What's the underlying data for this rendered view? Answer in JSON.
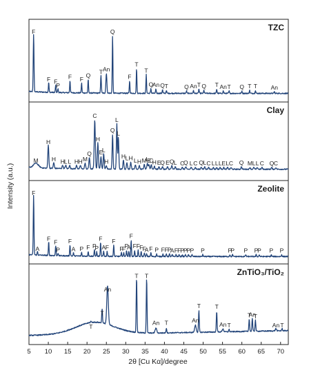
{
  "chart_data": {
    "type": "line",
    "xlabel": "2θ [Cu Kα]/degree",
    "ylabel": "Intensity (a.u.)",
    "xlim": [
      5,
      72
    ],
    "xticks": [
      5,
      10,
      15,
      20,
      25,
      30,
      35,
      40,
      45,
      50,
      55,
      60,
      65,
      70
    ],
    "line_color": "#23457a",
    "panels": [
      {
        "name": "TZC",
        "baseline": 0.05,
        "peaks": [
          {
            "x": 6.2,
            "h": 0.93,
            "w": 0.14,
            "label": "F"
          },
          {
            "x": 10.1,
            "h": 0.16,
            "w": 0.12,
            "label": "F"
          },
          {
            "x": 11.9,
            "h": 0.12,
            "w": 0.12,
            "label": "F"
          },
          {
            "x": 12.5,
            "h": 0.06,
            "w": 0.12,
            "label": "P"
          },
          {
            "x": 15.6,
            "h": 0.2,
            "w": 0.12,
            "label": "F"
          },
          {
            "x": 18.6,
            "h": 0.16,
            "w": 0.12,
            "label": "F"
          },
          {
            "x": 20.3,
            "h": 0.22,
            "w": 0.12,
            "label": "Q"
          },
          {
            "x": 23.6,
            "h": 0.28,
            "w": 0.14,
            "label": "T"
          },
          {
            "x": 25.0,
            "h": 0.32,
            "w": 0.18,
            "label": "An"
          },
          {
            "x": 26.6,
            "h": 0.93,
            "w": 0.12,
            "label": "Q"
          },
          {
            "x": 31.0,
            "h": 0.2,
            "w": 0.12,
            "label": "F"
          },
          {
            "x": 32.8,
            "h": 0.4,
            "w": 0.12,
            "label": "T"
          },
          {
            "x": 35.3,
            "h": 0.3,
            "w": 0.12,
            "label": "T"
          },
          {
            "x": 36.5,
            "h": 0.08,
            "w": 0.12,
            "label": "Q"
          },
          {
            "x": 37.8,
            "h": 0.07,
            "w": 0.12,
            "label": "An"
          },
          {
            "x": 39.5,
            "h": 0.06,
            "w": 0.12,
            "label": "Q"
          },
          {
            "x": 40.5,
            "h": 0.05,
            "w": 0.12,
            "label": "T"
          },
          {
            "x": 45.7,
            "h": 0.04,
            "w": 0.12,
            "label": "Q"
          },
          {
            "x": 47.5,
            "h": 0.05,
            "w": 0.12,
            "label": "An"
          },
          {
            "x": 48.9,
            "h": 0.07,
            "w": 0.12,
            "label": "T"
          },
          {
            "x": 50.2,
            "h": 0.05,
            "w": 0.12,
            "label": "Q"
          },
          {
            "x": 53.5,
            "h": 0.07,
            "w": 0.12,
            "label": "T"
          },
          {
            "x": 55.2,
            "h": 0.04,
            "w": 0.12,
            "label": "An"
          },
          {
            "x": 56.7,
            "h": 0.04,
            "w": 0.12,
            "label": "T"
          },
          {
            "x": 60.0,
            "h": 0.04,
            "w": 0.12,
            "label": "Q"
          },
          {
            "x": 62.0,
            "h": 0.05,
            "w": 0.12,
            "label": "T"
          },
          {
            "x": 63.5,
            "h": 0.05,
            "w": 0.12,
            "label": "T"
          },
          {
            "x": 68.4,
            "h": 0.03,
            "w": 0.12,
            "label": "An"
          }
        ]
      },
      {
        "name": "Clay",
        "baseline": 0.1,
        "peaks": [
          {
            "x": 6.8,
            "h": 0.08,
            "w": 0.9,
            "label": "M"
          },
          {
            "x": 10.0,
            "h": 0.4,
            "w": 0.18,
            "label": "H"
          },
          {
            "x": 11.4,
            "h": 0.1,
            "w": 0.18,
            "label": "H"
          },
          {
            "x": 13.7,
            "h": 0.06,
            "w": 0.18,
            "label": "H"
          },
          {
            "x": 14.5,
            "h": 0.06,
            "w": 0.18,
            "label": "L"
          },
          {
            "x": 15.5,
            "h": 0.06,
            "w": 0.18,
            "label": "L"
          },
          {
            "x": 17.3,
            "h": 0.06,
            "w": 0.18,
            "label": "H"
          },
          {
            "x": 18.3,
            "h": 0.06,
            "w": 0.18,
            "label": "H"
          },
          {
            "x": 19.5,
            "h": 0.1,
            "w": 0.18,
            "label": "M"
          },
          {
            "x": 20.6,
            "h": 0.2,
            "w": 0.18,
            "label": "Q"
          },
          {
            "x": 22.0,
            "h": 0.85,
            "w": 0.2,
            "label": "C"
          },
          {
            "x": 22.8,
            "h": 0.45,
            "w": 0.18,
            "label": "H"
          },
          {
            "x": 23.6,
            "h": 0.22,
            "w": 0.18,
            "label": "E"
          },
          {
            "x": 24.3,
            "h": 0.26,
            "w": 0.18,
            "label": "L"
          },
          {
            "x": 25.0,
            "h": 0.06,
            "w": 0.18,
            "label": "H"
          },
          {
            "x": 26.6,
            "h": 0.6,
            "w": 0.16,
            "label": "Q"
          },
          {
            "x": 27.7,
            "h": 0.78,
            "w": 0.16,
            "label": "L"
          },
          {
            "x": 28.1,
            "h": 0.55,
            "w": 0.16,
            "label": "L"
          },
          {
            "x": 29.4,
            "h": 0.15,
            "w": 0.18,
            "label": "H"
          },
          {
            "x": 30.3,
            "h": 0.12,
            "w": 0.18,
            "label": "L"
          },
          {
            "x": 31.3,
            "h": 0.12,
            "w": 0.18,
            "label": "H"
          },
          {
            "x": 32.5,
            "h": 0.08,
            "w": 0.18,
            "label": "L"
          },
          {
            "x": 33.5,
            "h": 0.06,
            "w": 0.18,
            "label": "H"
          },
          {
            "x": 34.8,
            "h": 0.08,
            "w": 0.18,
            "label": "M"
          },
          {
            "x": 35.6,
            "h": 0.1,
            "w": 0.18,
            "label": "L"
          },
          {
            "x": 36.0,
            "h": 0.08,
            "w": 0.18,
            "label": "E"
          },
          {
            "x": 36.6,
            "h": 0.08,
            "w": 0.18,
            "label": "C"
          },
          {
            "x": 37.4,
            "h": 0.05,
            "w": 0.18,
            "label": "H"
          },
          {
            "x": 38.6,
            "h": 0.04,
            "w": 0.18,
            "label": "E"
          },
          {
            "x": 39.5,
            "h": 0.04,
            "w": 0.18,
            "label": "Q"
          },
          {
            "x": 40.8,
            "h": 0.04,
            "w": 0.18,
            "label": "E"
          },
          {
            "x": 41.9,
            "h": 0.06,
            "w": 0.18,
            "label": "Q"
          },
          {
            "x": 42.8,
            "h": 0.04,
            "w": 0.18,
            "label": "L"
          },
          {
            "x": 44.6,
            "h": 0.03,
            "w": 0.18,
            "label": "C"
          },
          {
            "x": 45.5,
            "h": 0.04,
            "w": 0.18,
            "label": "Q"
          },
          {
            "x": 46.9,
            "h": 0.03,
            "w": 0.18,
            "label": "L"
          },
          {
            "x": 48.0,
            "h": 0.03,
            "w": 0.18,
            "label": "C"
          },
          {
            "x": 49.5,
            "h": 0.04,
            "w": 0.18,
            "label": "Q"
          },
          {
            "x": 50.4,
            "h": 0.04,
            "w": 0.18,
            "label": "L"
          },
          {
            "x": 51.4,
            "h": 0.03,
            "w": 0.18,
            "label": "C"
          },
          {
            "x": 52.6,
            "h": 0.03,
            "w": 0.18,
            "label": "L"
          },
          {
            "x": 53.5,
            "h": 0.03,
            "w": 0.18,
            "label": "L"
          },
          {
            "x": 54.4,
            "h": 0.03,
            "w": 0.18,
            "label": "L"
          },
          {
            "x": 55.3,
            "h": 0.03,
            "w": 0.18,
            "label": "E"
          },
          {
            "x": 56.3,
            "h": 0.03,
            "w": 0.18,
            "label": "L"
          },
          {
            "x": 57.2,
            "h": 0.03,
            "w": 0.18,
            "label": "C"
          },
          {
            "x": 59.9,
            "h": 0.04,
            "w": 0.18,
            "label": "Q"
          },
          {
            "x": 62.1,
            "h": 0.03,
            "w": 0.18,
            "label": "M"
          },
          {
            "x": 63.1,
            "h": 0.03,
            "w": 0.18,
            "label": "L"
          },
          {
            "x": 64.0,
            "h": 0.03,
            "w": 0.18,
            "label": "L"
          },
          {
            "x": 65.2,
            "h": 0.03,
            "w": 0.18,
            "label": "C"
          },
          {
            "x": 67.7,
            "h": 0.03,
            "w": 0.18,
            "label": "Q"
          },
          {
            "x": 68.8,
            "h": 0.03,
            "w": 0.18,
            "label": "C"
          }
        ]
      },
      {
        "name": "Zeolite",
        "baseline": 0.03,
        "peaks": [
          {
            "x": 6.2,
            "h": 0.95,
            "w": 0.13,
            "label": "F"
          },
          {
            "x": 7.2,
            "h": 0.06,
            "w": 0.12,
            "label": "A"
          },
          {
            "x": 10.1,
            "h": 0.22,
            "w": 0.12,
            "label": "F"
          },
          {
            "x": 11.9,
            "h": 0.16,
            "w": 0.12,
            "label": "F"
          },
          {
            "x": 12.5,
            "h": 0.04,
            "w": 0.12,
            "label": "P"
          },
          {
            "x": 15.6,
            "h": 0.18,
            "w": 0.12,
            "label": "F"
          },
          {
            "x": 16.5,
            "h": 0.05,
            "w": 0.12,
            "label": "A"
          },
          {
            "x": 18.6,
            "h": 0.06,
            "w": 0.12,
            "label": "P"
          },
          {
            "x": 20.3,
            "h": 0.08,
            "w": 0.12,
            "label": "F"
          },
          {
            "x": 21.9,
            "h": 0.1,
            "w": 0.12,
            "label": "P"
          },
          {
            "x": 22.5,
            "h": 0.07,
            "w": 0.12,
            "label": "P"
          },
          {
            "x": 23.5,
            "h": 0.22,
            "w": 0.12,
            "label": "F"
          },
          {
            "x": 24.3,
            "h": 0.08,
            "w": 0.12,
            "label": "A"
          },
          {
            "x": 25.2,
            "h": 0.08,
            "w": 0.12,
            "label": "F"
          },
          {
            "x": 26.9,
            "h": 0.18,
            "w": 0.12,
            "label": "F"
          },
          {
            "x": 28.9,
            "h": 0.06,
            "w": 0.12,
            "label": "F"
          },
          {
            "x": 29.5,
            "h": 0.06,
            "w": 0.12,
            "label": "F"
          },
          {
            "x": 30.2,
            "h": 0.1,
            "w": 0.12,
            "label": "P"
          },
          {
            "x": 30.8,
            "h": 0.08,
            "w": 0.12,
            "label": "A"
          },
          {
            "x": 31.4,
            "h": 0.26,
            "w": 0.12,
            "label": "F"
          },
          {
            "x": 32.3,
            "h": 0.1,
            "w": 0.12,
            "label": "F"
          },
          {
            "x": 33.2,
            "h": 0.1,
            "w": 0.12,
            "label": "F"
          },
          {
            "x": 34.0,
            "h": 0.08,
            "w": 0.12,
            "label": "F"
          },
          {
            "x": 34.8,
            "h": 0.06,
            "w": 0.12,
            "label": "F"
          },
          {
            "x": 35.4,
            "h": 0.04,
            "w": 0.12,
            "label": "A"
          },
          {
            "x": 36.5,
            "h": 0.06,
            "w": 0.12,
            "label": "F"
          },
          {
            "x": 38.0,
            "h": 0.04,
            "w": 0.12,
            "label": "P"
          },
          {
            "x": 39.6,
            "h": 0.04,
            "w": 0.12,
            "label": "F"
          },
          {
            "x": 40.5,
            "h": 0.04,
            "w": 0.12,
            "label": "F"
          },
          {
            "x": 41.3,
            "h": 0.04,
            "w": 0.12,
            "label": "P"
          },
          {
            "x": 42.0,
            "h": 0.03,
            "w": 0.12,
            "label": "A"
          },
          {
            "x": 43.0,
            "h": 0.03,
            "w": 0.12,
            "label": "F"
          },
          {
            "x": 43.8,
            "h": 0.03,
            "w": 0.12,
            "label": "F"
          },
          {
            "x": 44.6,
            "h": 0.03,
            "w": 0.12,
            "label": "P"
          },
          {
            "x": 45.4,
            "h": 0.03,
            "w": 0.12,
            "label": "P"
          },
          {
            "x": 46.2,
            "h": 0.03,
            "w": 0.12,
            "label": "P"
          },
          {
            "x": 47.1,
            "h": 0.03,
            "w": 0.12,
            "label": "P"
          },
          {
            "x": 49.9,
            "h": 0.03,
            "w": 0.12,
            "label": "P"
          },
          {
            "x": 56.9,
            "h": 0.03,
            "w": 0.12,
            "label": "P"
          },
          {
            "x": 57.6,
            "h": 0.03,
            "w": 0.12,
            "label": "P"
          },
          {
            "x": 61.0,
            "h": 0.03,
            "w": 0.12,
            "label": "P"
          },
          {
            "x": 63.7,
            "h": 0.03,
            "w": 0.12,
            "label": "P"
          },
          {
            "x": 64.5,
            "h": 0.03,
            "w": 0.12,
            "label": "P"
          },
          {
            "x": 67.6,
            "h": 0.03,
            "w": 0.12,
            "label": "P"
          },
          {
            "x": 70.3,
            "h": 0.03,
            "w": 0.12,
            "label": "P"
          }
        ]
      },
      {
        "name": "ZnTiO₃/TiO₂",
        "baseline": 0.16,
        "peaks": [
          {
            "x": 21.0,
            "h": 0.02,
            "w": 0.18,
            "label": "T"
          },
          {
            "x": 23.9,
            "h": 0.24,
            "w": 0.14,
            "label": "T"
          },
          {
            "x": 25.3,
            "h": 0.64,
            "w": 0.28,
            "label": "An"
          },
          {
            "x": 32.8,
            "h": 0.92,
            "w": 0.14,
            "label": "T"
          },
          {
            "x": 35.4,
            "h": 0.92,
            "w": 0.14,
            "label": "T"
          },
          {
            "x": 37.8,
            "h": 0.08,
            "w": 0.3,
            "label": "An"
          },
          {
            "x": 40.5,
            "h": 0.08,
            "w": 0.14,
            "label": "T"
          },
          {
            "x": 48.0,
            "h": 0.12,
            "w": 0.28,
            "label": "An"
          },
          {
            "x": 48.9,
            "h": 0.36,
            "w": 0.14,
            "label": "T"
          },
          {
            "x": 53.5,
            "h": 0.35,
            "w": 0.14,
            "label": "T"
          },
          {
            "x": 55.1,
            "h": 0.05,
            "w": 0.25,
            "label": "An"
          },
          {
            "x": 56.7,
            "h": 0.04,
            "w": 0.14,
            "label": "T"
          },
          {
            "x": 61.9,
            "h": 0.21,
            "w": 0.14,
            "label": "T"
          },
          {
            "x": 62.7,
            "h": 0.22,
            "w": 0.14,
            "label": "An"
          },
          {
            "x": 63.5,
            "h": 0.19,
            "w": 0.14,
            "label": "T"
          },
          {
            "x": 68.8,
            "h": 0.04,
            "w": 0.2,
            "label": "An"
          },
          {
            "x": 70.4,
            "h": 0.04,
            "w": 0.14,
            "label": "T"
          }
        ]
      }
    ]
  }
}
